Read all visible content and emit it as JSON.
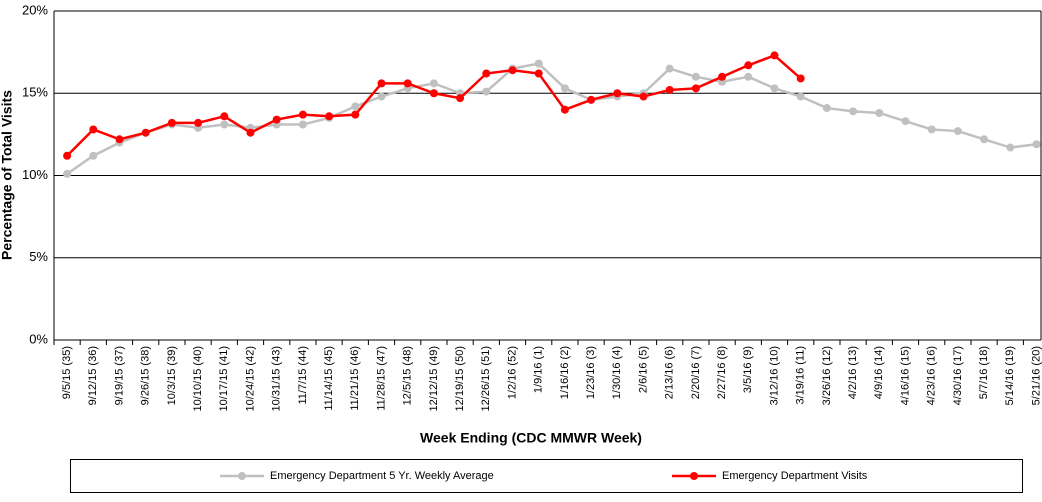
{
  "chart_data": {
    "type": "line",
    "x_label": "Week Ending (CDC MMWR Week)",
    "y_label": "Percentage of Total Visits",
    "categories": [
      "9/5/15 (35)",
      "9/12/15 (36)",
      "9/19/15 (37)",
      "9/26/15 (38)",
      "10/3/15 (39)",
      "10/10/15 (40)",
      "10/17/15 (41)",
      "10/24/15 (42)",
      "10/31/15 (43)",
      "11/7/15 (44)",
      "11/14/15 (45)",
      "11/21/15 (46)",
      "11/28/15 (47)",
      "12/5/15 (48)",
      "12/12/15 (49)",
      "12/19/15 (50)",
      "12/26/15 (51)",
      "1/2/16 (52)",
      "1/9/16 (1)",
      "1/16/16 (2)",
      "1/23/16 (3)",
      "1/30/16 (4)",
      "2/6/16 (5)",
      "2/13/16 (6)",
      "2/20/16 (7)",
      "2/27/16 (8)",
      "3/5/16 (9)",
      "3/12/16 (10)",
      "3/19/16 (11)",
      "3/26/16 (12)",
      "4/2/16 (13)",
      "4/9/16 (14)",
      "4/16/16 (15)",
      "4/23/16 (16)",
      "4/30/16 (17)",
      "5/7/16 (18)",
      "5/14/16 (19)",
      "5/21/16 (20)"
    ],
    "series": [
      {
        "name": "Emergency Department 5 Yr. Weekly Average",
        "color": "#c0c0c0",
        "values": [
          10.1,
          11.2,
          12.0,
          12.6,
          13.1,
          12.9,
          13.1,
          12.9,
          13.1,
          13.1,
          13.5,
          14.2,
          14.8,
          15.3,
          15.6,
          15.0,
          15.1,
          16.5,
          16.8,
          15.3,
          14.6,
          14.8,
          15.0,
          16.5,
          16.0,
          15.7,
          16.0,
          15.3,
          14.8,
          14.1,
          13.9,
          13.8,
          13.3,
          12.8,
          12.7,
          12.2,
          11.7,
          11.9
        ]
      },
      {
        "name": "Emergency Department Visits",
        "color": "#ff0000",
        "values": [
          11.2,
          12.8,
          12.2,
          12.6,
          13.2,
          13.2,
          13.6,
          12.6,
          13.4,
          13.7,
          13.6,
          13.7,
          15.6,
          15.6,
          15.0,
          14.7,
          16.2,
          16.4,
          16.2,
          14.0,
          14.6,
          15.0,
          14.8,
          15.2,
          15.3,
          16.0,
          16.7,
          17.3,
          15.9,
          null,
          null,
          null,
          null,
          null,
          null,
          null,
          null,
          null
        ]
      }
    ],
    "ylim": [
      0,
      20
    ],
    "yticks": [
      {
        "value": 0,
        "label": "0%"
      },
      {
        "value": 5,
        "label": "5%"
      },
      {
        "value": 10,
        "label": "10%"
      },
      {
        "value": 15,
        "label": "15%"
      },
      {
        "value": 20,
        "label": "20%"
      }
    ],
    "grid": true,
    "legend": "bottom"
  }
}
